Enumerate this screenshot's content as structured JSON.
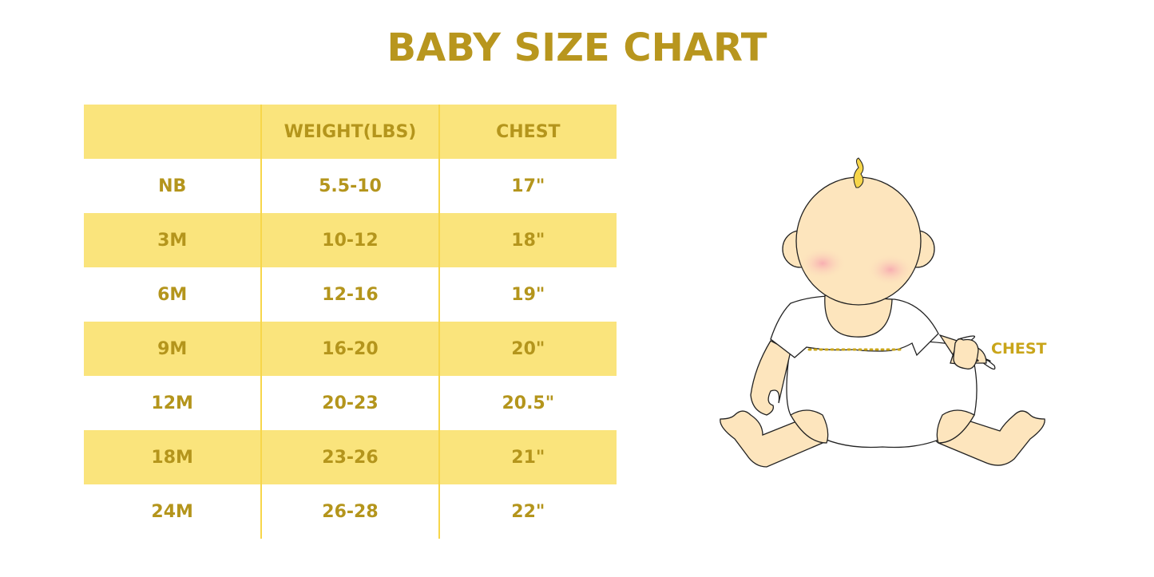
{
  "title": "BABY SIZE CHART",
  "table": {
    "headers": [
      "",
      "WEIGHT(LBS)",
      "CHEST"
    ],
    "rows": [
      [
        "NB",
        "5.5-10",
        "17\""
      ],
      [
        "3M",
        "10-12",
        "18\""
      ],
      [
        "6M",
        "12-16",
        "19\""
      ],
      [
        "9M",
        "16-20",
        "20\""
      ],
      [
        "12M",
        "20-23",
        "20.5\""
      ],
      [
        "18M",
        "23-26",
        "21\""
      ],
      [
        "24M",
        "26-28",
        "22\""
      ]
    ]
  },
  "illustration": {
    "chest_label": "CHEST"
  },
  "colors": {
    "accent": "#b4951c",
    "row_fill": "#fae47c",
    "skin": "#fde5bd"
  }
}
